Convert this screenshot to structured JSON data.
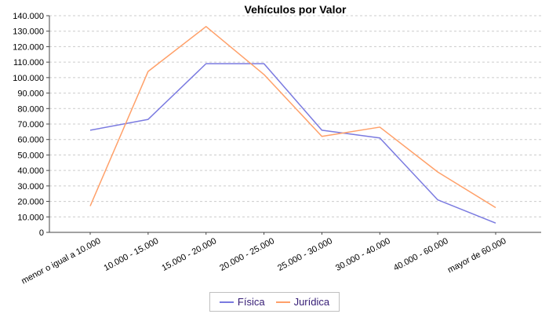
{
  "chart_data": {
    "type": "line",
    "title": "Vehículos por Valor",
    "categories": [
      "menor o igual a 10.000",
      "10.000 - 15.000",
      "15.000 - 20.000",
      "20.000 - 25.000",
      "25.000 - 30.000",
      "30.000 - 40.000",
      "40.000 - 60.000",
      "mayor de 60.000"
    ],
    "series": [
      {
        "name": "Física",
        "color": "#7a7ae0",
        "values": [
          66000,
          73000,
          109000,
          109000,
          66000,
          61000,
          21000,
          6000
        ]
      },
      {
        "name": "Jurídica",
        "color": "#ffa069",
        "values": [
          17000,
          104000,
          133000,
          102000,
          62000,
          68000,
          39000,
          16000
        ]
      }
    ],
    "ylim": [
      0,
      140000
    ],
    "ytick_step": 10000,
    "ytick_labels": [
      "0",
      "10.000",
      "20.000",
      "30.000",
      "40.000",
      "50.000",
      "60.000",
      "70.000",
      "80.000",
      "90.000",
      "100.000",
      "110.000",
      "120.000",
      "130.000",
      "140.000"
    ],
    "grid": "horizontal-dashed",
    "legend_position": "bottom",
    "colors": {
      "grid": "#cccccc",
      "axis": "#444444",
      "tick_text": "#000000",
      "title_text": "#000000",
      "legend_text": "#351c75",
      "legend_border": "#c0c0c0",
      "background": "#ffffff"
    }
  }
}
